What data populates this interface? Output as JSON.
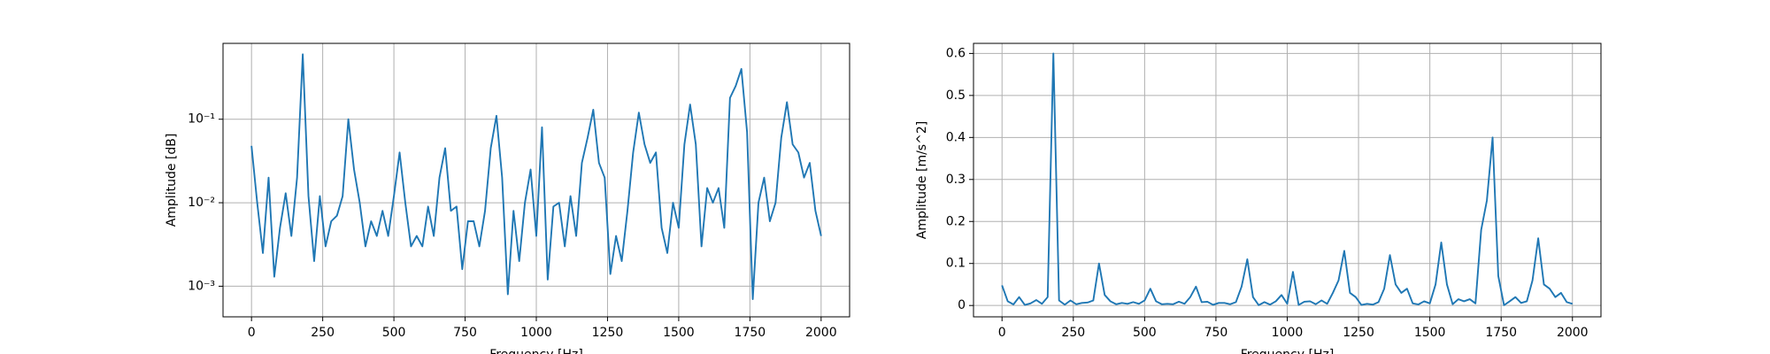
{
  "chart_data": [
    {
      "type": "line",
      "xlabel": "Frequency [Hz]",
      "ylabel": "Amplitude [dB]",
      "color": "#1f77b4",
      "log_y": true,
      "grid": true,
      "x": [
        0,
        20,
        40,
        60,
        80,
        100,
        120,
        140,
        160,
        180,
        200,
        220,
        240,
        260,
        280,
        300,
        320,
        340,
        360,
        380,
        400,
        420,
        440,
        460,
        480,
        500,
        520,
        540,
        560,
        580,
        600,
        620,
        640,
        660,
        680,
        700,
        720,
        740,
        760,
        780,
        800,
        820,
        840,
        860,
        880,
        900,
        920,
        940,
        960,
        980,
        1000,
        1020,
        1040,
        1060,
        1080,
        1100,
        1120,
        1140,
        1160,
        1180,
        1200,
        1220,
        1240,
        1260,
        1280,
        1300,
        1320,
        1340,
        1360,
        1380,
        1400,
        1420,
        1440,
        1460,
        1480,
        1500,
        1520,
        1540,
        1560,
        1580,
        1600,
        1620,
        1640,
        1660,
        1680,
        1700,
        1720,
        1740,
        1760,
        1780,
        1800,
        1820,
        1840,
        1860,
        1880,
        1900,
        1920,
        1940,
        1960,
        1980,
        2000
      ],
      "values": [
        0.048,
        0.01,
        0.0025,
        0.02,
        0.0013,
        0.005,
        0.013,
        0.004,
        0.02,
        0.6,
        0.012,
        0.002,
        0.012,
        0.003,
        0.006,
        0.007,
        0.012,
        0.1,
        0.025,
        0.01,
        0.003,
        0.006,
        0.004,
        0.008,
        0.004,
        0.012,
        0.04,
        0.01,
        0.003,
        0.004,
        0.003,
        0.009,
        0.004,
        0.02,
        0.045,
        0.008,
        0.009,
        0.0016,
        0.006,
        0.006,
        0.003,
        0.008,
        0.045,
        0.11,
        0.02,
        0.0008,
        0.008,
        0.002,
        0.01,
        0.025,
        0.004,
        0.08,
        0.0012,
        0.009,
        0.01,
        0.003,
        0.012,
        0.004,
        0.03,
        0.06,
        0.13,
        0.03,
        0.02,
        0.0014,
        0.004,
        0.002,
        0.008,
        0.04,
        0.12,
        0.05,
        0.03,
        0.04,
        0.005,
        0.0025,
        0.01,
        0.005,
        0.05,
        0.15,
        0.05,
        0.003,
        0.015,
        0.01,
        0.015,
        0.005,
        0.18,
        0.25,
        0.4,
        0.07,
        0.0007,
        0.01,
        0.02,
        0.006,
        0.01,
        0.06,
        0.16,
        0.05,
        0.04,
        0.02,
        0.03,
        0.008,
        0.004
      ],
      "xlim": [
        -100,
        2100
      ],
      "xticks": [
        0,
        250,
        500,
        750,
        1000,
        1250,
        1500,
        1750,
        2000
      ],
      "ylim": [
        0.00043,
        0.81
      ],
      "yticks": [
        {
          "value": 0.001,
          "label": "10⁻³"
        },
        {
          "value": 0.01,
          "label": "10⁻²"
        },
        {
          "value": 0.1,
          "label": "10⁻¹"
        }
      ]
    },
    {
      "type": "line",
      "xlabel": "Frequency [Hz]",
      "ylabel": "Amplitude [m/s^2]",
      "color": "#1f77b4",
      "log_y": false,
      "grid": true,
      "x": [
        0,
        20,
        40,
        60,
        80,
        100,
        120,
        140,
        160,
        180,
        200,
        220,
        240,
        260,
        280,
        300,
        320,
        340,
        360,
        380,
        400,
        420,
        440,
        460,
        480,
        500,
        520,
        540,
        560,
        580,
        600,
        620,
        640,
        660,
        680,
        700,
        720,
        740,
        760,
        780,
        800,
        820,
        840,
        860,
        880,
        900,
        920,
        940,
        960,
        980,
        1000,
        1020,
        1040,
        1060,
        1080,
        1100,
        1120,
        1140,
        1160,
        1180,
        1200,
        1220,
        1240,
        1260,
        1280,
        1300,
        1320,
        1340,
        1360,
        1380,
        1400,
        1420,
        1440,
        1460,
        1480,
        1500,
        1520,
        1540,
        1560,
        1580,
        1600,
        1620,
        1640,
        1660,
        1680,
        1700,
        1720,
        1740,
        1760,
        1780,
        1800,
        1820,
        1840,
        1860,
        1880,
        1900,
        1920,
        1940,
        1960,
        1980,
        2000
      ],
      "values": [
        0.048,
        0.01,
        0.0025,
        0.02,
        0.0013,
        0.005,
        0.013,
        0.004,
        0.02,
        0.6,
        0.012,
        0.002,
        0.012,
        0.003,
        0.006,
        0.007,
        0.012,
        0.1,
        0.025,
        0.01,
        0.003,
        0.006,
        0.004,
        0.008,
        0.004,
        0.012,
        0.04,
        0.01,
        0.003,
        0.004,
        0.003,
        0.009,
        0.004,
        0.02,
        0.045,
        0.008,
        0.009,
        0.0016,
        0.006,
        0.006,
        0.003,
        0.008,
        0.045,
        0.11,
        0.02,
        0.0008,
        0.008,
        0.002,
        0.01,
        0.025,
        0.004,
        0.08,
        0.0012,
        0.009,
        0.01,
        0.003,
        0.012,
        0.004,
        0.03,
        0.06,
        0.13,
        0.03,
        0.02,
        0.0014,
        0.004,
        0.002,
        0.008,
        0.04,
        0.12,
        0.05,
        0.03,
        0.04,
        0.005,
        0.0025,
        0.01,
        0.005,
        0.05,
        0.15,
        0.05,
        0.003,
        0.015,
        0.01,
        0.015,
        0.005,
        0.18,
        0.25,
        0.4,
        0.07,
        0.0007,
        0.01,
        0.02,
        0.006,
        0.01,
        0.06,
        0.16,
        0.05,
        0.04,
        0.02,
        0.03,
        0.008,
        0.004
      ],
      "xlim": [
        -100,
        2100
      ],
      "xticks": [
        0,
        250,
        500,
        750,
        1000,
        1250,
        1500,
        1750,
        2000
      ],
      "ylim": [
        -0.027,
        0.624
      ],
      "yticks": [
        0.0,
        0.1,
        0.2,
        0.3,
        0.4,
        0.5,
        0.6
      ]
    }
  ]
}
